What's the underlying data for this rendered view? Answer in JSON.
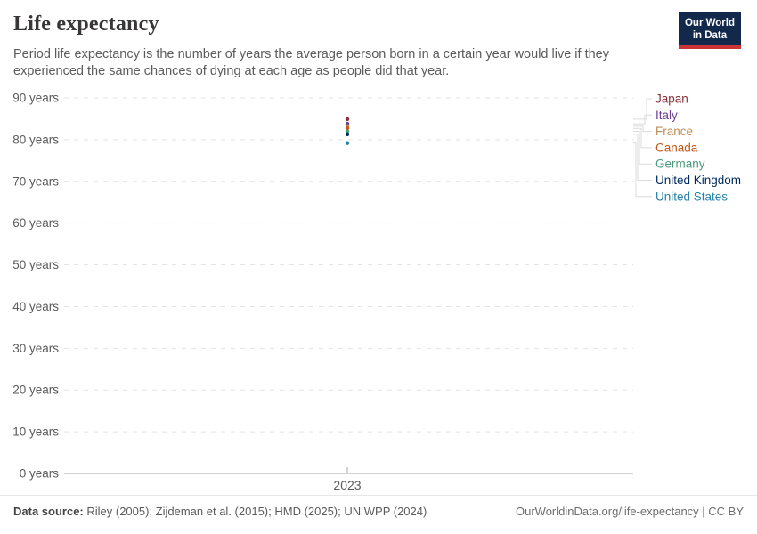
{
  "header": {
    "title": "Life expectancy",
    "subtitle": "Period life expectancy is the number of years the average person born in a certain year would live if they experienced the same chances of dying at each age as people did that year."
  },
  "brand": {
    "logo_line1": "Our World",
    "logo_line2": "in Data",
    "logo_bg": "#12294B",
    "logo_accent": "#CB3434"
  },
  "chart_data": {
    "type": "scatter",
    "title": "Life expectancy",
    "xlabel": "",
    "ylabel": "",
    "x": [
      2023
    ],
    "x_tick_labels": [
      "2023"
    ],
    "y_ticks": [
      0,
      10,
      20,
      30,
      40,
      50,
      60,
      70,
      80,
      90
    ],
    "y_tick_suffix": " years",
    "ylim": [
      0,
      90
    ],
    "grid": "horizontal-dashed",
    "legend_position": "right",
    "series": [
      {
        "name": "Japan",
        "color": "#883039",
        "values": [
          84.9
        ]
      },
      {
        "name": "Italy",
        "color": "#6D3E91",
        "values": [
          83.8
        ]
      },
      {
        "name": "France",
        "color": "#BC8E5A",
        "values": [
          83.2
        ]
      },
      {
        "name": "Canada",
        "color": "#C05917",
        "values": [
          82.7
        ]
      },
      {
        "name": "Germany",
        "color": "#4C9A7E",
        "values": [
          82.0
        ]
      },
      {
        "name": "United Kingdom",
        "color": "#00295B",
        "values": [
          81.3
        ]
      },
      {
        "name": "United States",
        "color": "#2783A8",
        "values": [
          79.2
        ]
      }
    ]
  },
  "footer": {
    "data_source_label": "Data source:",
    "data_source_text": " Riley (2005); Zijdeman et al. (2015); HMD (2025); UN WPP (2024)",
    "attribution": "OurWorldinData.org/life-expectancy | CC BY"
  }
}
